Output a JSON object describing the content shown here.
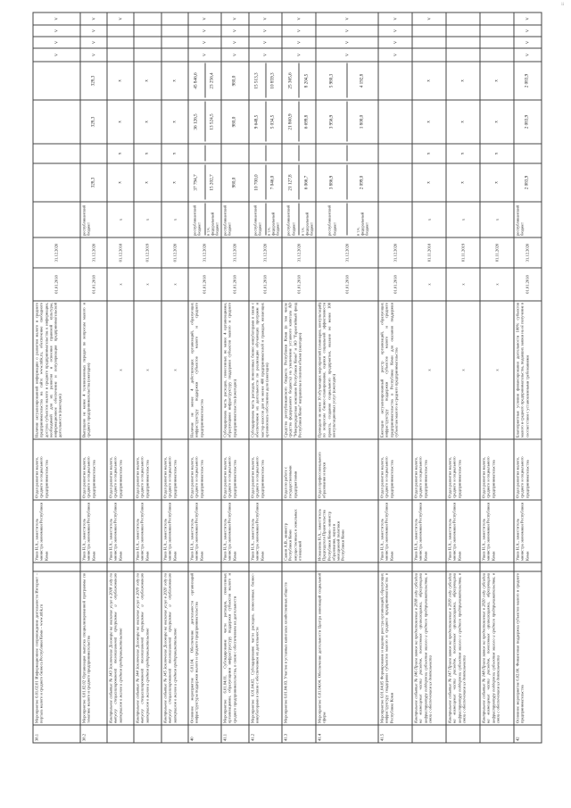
{
  "corner_mark": "ii",
  "rows": [
    {
      "no": "38.1",
      "name": "Мероприятие 6.01.02.01 Информационное сопровождение деятельности Интернет – портала малого и среднего бизнеса Республики Коми – www.mbk.ru",
      "resp": "Ушев Н.А., заместитель министра экономики Республики Коми",
      "exec": "Отдел развития малого, среднего и социального предпринимательства",
      "result": "Наличие актуализированной информации о развитии малого и среднего предпринимательства на сайте www.mbk.ru, обеспечение свободного доступа субъектов малого и среднего предпринимательства к информации, необходимой для их развития и освоения правовой культуры, информационное обеспечение и популяризация предпринимательской деятельности (ежегодно)",
      "start": "01.01.2018",
      "end": "31.12.2020",
      "src": [
        ""
      ],
      "v8": [
        ""
      ],
      "v7": [
        ""
      ],
      "v6": [
        ""
      ],
      "v5": [
        ""
      ],
      "marks": [
        "V",
        "V",
        "V",
        "V"
      ]
    },
    {
      "no": "38.2",
      "name": "Мероприятие 6.01.02.02 Организация выпуска специализированной программы по тематике малого и среднего предпринимательства",
      "resp": "Ушев Н.А., заместитель министра экономики Республики Коми",
      "exec": "Отдел развития малого, среднего и социального предпринимательства",
      "result": "Выпущено не менее 4 телевизионных передач по вопросам малого и среднего предпринимательства (ежегодно)",
      "start": "01.01.2018",
      "end": "31.12.2020",
      "src": [
        "республиканский бюджет"
      ],
      "v8": [
        "328,3"
      ],
      "v7": [
        ""
      ],
      "v6": [
        "328,3"
      ],
      "v5": [
        "328,3"
      ],
      "marks": [
        "V",
        "V",
        "V",
        "V"
      ]
    },
    {
      "no": "",
      "ctrl": true,
      "name": "Контрольное событие № 143 Заключение Договора на оказание услуг в 2018 году по выпуску специализированной телевизионной программы и опубликованию материалов о малом и среднем предпринимательстве",
      "resp": "Ушев Н.А., заместитель министра экономики Республики Коми",
      "exec": "Отдел развития малого, среднего и социального предпринимательства",
      "result": "х",
      "start": "х",
      "end": "01.12.2018",
      "src": [
        "х"
      ],
      "v8": [
        "х"
      ],
      "v7": [
        "х"
      ],
      "v6": [
        "х"
      ],
      "v5": [
        "х"
      ],
      "marks": [
        "V",
        "",
        "",
        ""
      ]
    },
    {
      "no": "",
      "ctrl": true,
      "name": "Контрольное событие № 144 Заключение Договора на оказание услуг в 2019 году по выпуску специализированной телевизионной программы и опубликованию материалов о малом и среднем предпринимательстве",
      "resp": "Ушев Н.А., заместитель министра экономики Республики Коми",
      "exec": "Отдел развития малого, среднего и социального предпринимательства",
      "result": "х",
      "start": "х",
      "end": "01.12.2019",
      "src": [
        "х"
      ],
      "v8": [
        "х"
      ],
      "v7": [
        "х"
      ],
      "v6": [
        "х"
      ],
      "v5": [
        "х"
      ],
      "marks": [
        "",
        "",
        "",
        ""
      ]
    },
    {
      "no": "",
      "ctrl": true,
      "name": "Контрольное событие № 145 Заключение Договора на оказание услуг в 2020 году по выпуску специализированной телевизионной программы и опубликованию материалов о малом и среднем предпринимательстве",
      "resp": "Ушев Н.А., заместитель министра экономики Республики Коми",
      "exec": "Отдел развития малого, среднего и социального предпринимательства",
      "result": "х",
      "start": "х",
      "end": "01.12.2020",
      "src": [
        "х"
      ],
      "v8": [
        "х"
      ],
      "v7": [
        "х"
      ],
      "v6": [
        "х"
      ],
      "v5": [
        "х"
      ],
      "marks": [
        "",
        "",
        "",
        ""
      ]
    },
    {
      "no": "40",
      "name": "Основное мероприятие 6.01.04. Обеспечение деятельности организаций инфраструктуры поддержки малого и среднего предпринимательства",
      "resp": "Ушев Н.А., заместитель министра экономики Республики Коми",
      "exec": "Отдел развития малого, среднего и социального предпринимательства",
      "result": "Наличие не менее 4 действующих организаций, образующих инфраструктуру поддержки субъектов малого и среднего предпринимательства",
      "start": "01.01.2018",
      "end": "31.12.2020",
      "src": [
        "республиканский бюджет",
        "в т.ч. федеральный бюджет"
      ],
      "v8": [
        "37 794,7",
        "15 202,7"
      ],
      "v7": [
        "",
        ""
      ],
      "v6": [
        "36 126,5",
        "13 524,5"
      ],
      "v5": [
        "45 846,6",
        "23 256,4"
      ],
      "marks": [
        "V",
        "V",
        "V",
        "V"
      ]
    },
    {
      "no": "41.1",
      "name": "Мероприятие 6.01.04.01. Субсидирование части расходов, понесенных организациями, образующими инфраструктуру поддержки субъектов малого и среднего предпринимательства, в связи с обеспечением их деятельности",
      "resp": "Ушев Н.А., заместитель министра экономики Республики Коми",
      "exec": "Отдел развития малого, среднего и социального предпринимательства",
      "result": "Субсидирована часть расходов, понесенных не менее 4 организациями, образующими инфраструктуру поддержки субъектов малого и среднего предпринимательства (ежегодно)",
      "start": "01.01.2018",
      "end": "31.12.2020",
      "src": [
        "республиканский бюджет"
      ],
      "v8": [
        "980,0"
      ],
      "v7": [
        ""
      ],
      "v6": [
        "980,0"
      ],
      "v5": [
        "980,0"
      ],
      "marks": [
        "V",
        "V",
        "V",
        "V"
      ]
    },
    {
      "no": "41.2",
      "name": "Мероприятие 6.01.04.02. Субсидирование части расходов, понесенных бизнес-инкубаторами в связи с обеспечением их деятельности",
      "resp": "Ушев Н.А., заместитель министра экономики Республики Коми",
      "exec": "Отдел развития малого, среднего и социального предпринимательства",
      "result": "Субсидирована часть расходов, понесенных бизнес-инкубаторами в связи с обеспечением их деятельности по реализации обучающих программ и мастер-классов для не менее 400 предпринимателей и граждан, желающих организовать собственное дело (ежегодно)",
      "start": "01.01.2018",
      "end": "31.12.2020",
      "src": [
        "республиканский бюджет",
        "в т.ч. федеральный бюджет"
      ],
      "v8": [
        "10 700,0",
        "7 046,0"
      ],
      "v7": [
        "",
        ""
      ],
      "v6": [
        "9 648,5",
        "5 034,5"
      ],
      "v5": [
        "15 513,3",
        "10 859,3"
      ],
      "marks": [
        "V",
        "V",
        "V",
        "V"
      ]
    },
    {
      "no": "41.3",
      "name": "Мероприятие 6.01.04.03. Участие в уставных капиталах хозяйственных обществ",
      "resp": "Сажин А.В., министр Республики Коми имущественных и земельных отношений",
      "exec": "Отдел по работе с государственными предприятиями",
      "result": "Средства республиканского бюджета Республики Коми (в том числе средства федерального бюджета) на увеличение уставного капитала АО \"Микрокредитная компания Республики Коми\" и АО \"Гарантийный фонд Республики Коми\" направлены в полном объеме (ежегодно)",
      "start": "01.01.2018",
      "end": "31.12.2020",
      "src": [
        "республиканский бюджет",
        "в т.ч. федеральный бюджет"
      ],
      "v8": [
        "21 127,8",
        "6 066,7"
      ],
      "v7": [
        "",
        ""
      ],
      "v6": [
        "21 860,9",
        "6 699,8"
      ],
      "v5": [
        "25 365,6",
        "8 204,5"
      ],
      "marks": [
        "V",
        "V",
        "V",
        "V"
      ]
    },
    {
      "no": "41.4",
      "name": "Мероприятие 6.01.04.04. Обеспечение деятельности Центра инноваций социальной сферы",
      "resp": "Исмаилова Н.А., заместитель Председателя Правительства Республики Коми - министр образования, науки и молодежной политики Республики Коми",
      "exec": "Отдел профессионального образования и науки",
      "result": "Проведено не менее 10 обучающих мероприятий (семинаров, консультаций) по вопросам бизнес-планирования, оценки социальной эффективности проекта, создания социального предприятия, оказано не менее 100 консультационных услуг (ежегодно)",
      "start": "01.01.2018",
      "end": "31.12.2020",
      "src": [
        "республиканский бюджет",
        "в т.ч. федеральный бюджет"
      ],
      "v8": [
        "3 886,9",
        "2 099,0"
      ],
      "v7": [
        "",
        ""
      ],
      "v6": [
        "3 956,9",
        "1 800,0"
      ],
      "v5": [
        "5 980,3",
        "4 192,8"
      ],
      "marks": [
        "V",
        "V",
        "V",
        "V"
      ]
    },
    {
      "no": "41.5",
      "name": "Мероприятие 6.01.04.05 Формирование и ведение реестра организаций, образующих инфраструктуру поддержки субъектов малого и среднего предпринимательства в Республике Коми",
      "resp": "Ушев Н.А., заместитель министра экономики Республики Коми",
      "exec": "Отдел развития малого, среднего и социального предпринимательства",
      "result": "Ежегодно актуализированный реестр организаций, образующих инфраструктуру поддержки субъектов малого и среднего предпринимательства в Республике Коми для оказания поддержки субъектам малого и среднего предпринимательства",
      "start": "01.01.2018",
      "end": "31.12.2020",
      "src": [
        ""
      ],
      "v8": [
        ""
      ],
      "v7": [
        ""
      ],
      "v6": [
        ""
      ],
      "v5": [
        ""
      ],
      "marks": [
        "V",
        "V",
        "V",
        "V"
      ]
    },
    {
      "no": "",
      "ctrl": true,
      "name": "Контрольное событие № 146 Прием заявок на предоставление в 2018 году субсидии на возмещение части расходов, понесенных организациями, образующими инфраструктуру поддержки субъектов малого и среднего предпринимательства, в связи с обеспечением их деятельности",
      "resp": "Ушев Н.А., заместитель министра экономики Республики Коми",
      "exec": "Отдел развития малого, среднего и социального предпринимательства",
      "result": "х",
      "start": "х",
      "end": "01.11.2018",
      "src": [
        "х"
      ],
      "v8": [
        "х"
      ],
      "v7": [
        "х"
      ],
      "v6": [
        "х"
      ],
      "v5": [
        "х"
      ],
      "marks": [
        "V",
        "",
        "",
        ""
      ]
    },
    {
      "no": "",
      "ctrl": true,
      "name": "Контрольное событие № 147 Прием заявок на предоставление в 2019 году субсидии на возмещение части расходов, понесенных организациями, образующими инфраструктуру поддержки субъектов малого и среднего предпринимательства, в связи с обеспечением их деятельности",
      "resp": "Ушев Н.А., заместитель министра экономики Республики Коми",
      "exec": "Отдел развития малого, среднего и социального предпринимательства",
      "result": "х",
      "start": "х",
      "end": "01.11.2019",
      "src": [
        "х"
      ],
      "v8": [
        "х"
      ],
      "v7": [
        "х"
      ],
      "v6": [
        "х"
      ],
      "v5": [
        "х"
      ],
      "marks": [
        "",
        "",
        "",
        ""
      ]
    },
    {
      "no": "",
      "ctrl": true,
      "name": "Контрольное событие № 148 Прием заявок на предоставление в 2020 году субсидии на возмещение части расходов, понесенных организациями, образующими инфраструктуру поддержки субъектов малого и среднего предпринимательства, в связи с обеспечением их деятельности",
      "resp": "Ушев Н.А., заместитель министра экономики Республики Коми",
      "exec": "Отдел развития малого, среднего и социального предпринимательства",
      "result": "х",
      "start": "х",
      "end": "01.11.2020",
      "src": [
        "х"
      ],
      "v8": [
        "х"
      ],
      "v7": [
        "х"
      ],
      "v6": [
        "х"
      ],
      "v5": [
        "х"
      ],
      "marks": [
        "",
        "",
        "",
        ""
      ]
    },
    {
      "no": "42",
      "name": "Основное мероприятие 6.02.00. Финансовая поддержка субъектов малого и среднего предпринимательства",
      "resp": "Ушев Н.А., заместитель министра экономики Республики Коми",
      "exec": "Отдел развития малого, среднего и социального предпринимательства",
      "result": "Благоприятные условия финансирования деятельности 100% субъектов малого и среднего предпринимательства, подавших заявки на её получение в соответствии с установленными требованиями",
      "start": "01.01.2018",
      "end": "31.12.2020",
      "src": [
        "республиканский бюджет"
      ],
      "v8": [
        "2 083,9"
      ],
      "v7": [
        ""
      ],
      "v6": [
        "2 083,9"
      ],
      "v5": [
        "2 083,9"
      ],
      "marks": [
        "V",
        "V",
        "V",
        "V"
      ]
    }
  ]
}
